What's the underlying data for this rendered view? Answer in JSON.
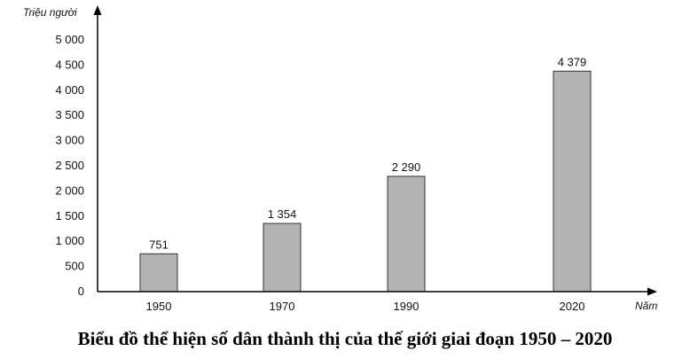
{
  "chart_data": {
    "type": "bar",
    "categories": [
      "1950",
      "1970",
      "1990",
      "2020"
    ],
    "values": [
      751,
      1354,
      2290,
      4379
    ],
    "value_labels": [
      "751",
      "1 354",
      "2 290",
      "4 379"
    ],
    "y_ticks": [
      0,
      500,
      1000,
      1500,
      2000,
      2500,
      3000,
      3500,
      4000,
      4500,
      5000
    ],
    "y_tick_labels": [
      "0",
      "500",
      "1 000",
      "1 500",
      "2 000",
      "2 500",
      "3 000",
      "3 500",
      "4 000",
      "4 500",
      "5 000"
    ],
    "ylim": [
      0,
      5000
    ],
    "ylabel": "Triệu người",
    "xlabel": "Năm",
    "title": "Biểu đồ thể hiện số dân thành thị của thế giới giai đoạn 1950 – 2020",
    "grid": false,
    "bar_color": "#b3b3b3",
    "bar_edge_color": "#333333"
  }
}
